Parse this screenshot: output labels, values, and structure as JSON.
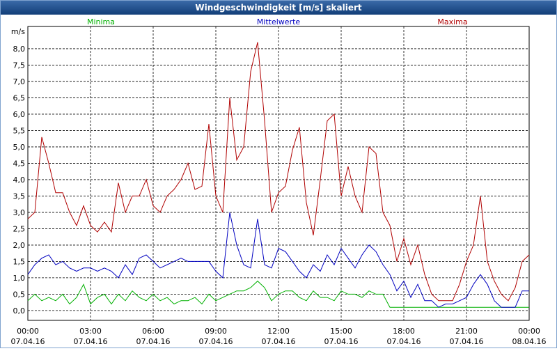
{
  "chart_data": {
    "type": "line",
    "title": "Windgeschwindigkeit [m/s] skaliert",
    "y_unit": "m/s",
    "x": [
      0,
      20,
      40,
      60,
      80,
      100,
      120,
      140,
      160,
      180,
      200,
      220,
      240,
      260,
      280,
      300,
      320,
      340,
      360,
      380,
      400,
      420,
      440,
      460,
      480,
      500,
      520,
      540,
      560,
      580,
      600,
      620,
      640,
      660,
      680,
      700,
      720,
      740,
      760,
      780,
      800,
      820,
      840,
      860,
      880,
      900,
      920,
      940,
      960,
      980,
      1000,
      1020,
      1040,
      1060,
      1080,
      1100,
      1120,
      1140,
      1160,
      1180,
      1200,
      1220,
      1240,
      1260,
      1280,
      1300,
      1320,
      1340,
      1360,
      1380,
      1400,
      1420,
      1440
    ],
    "xlim": [
      0,
      1440
    ],
    "xticks": [
      {
        "value": 0,
        "label": "00:00",
        "date": "07.04.16"
      },
      {
        "value": 180,
        "label": "03:00",
        "date": "07.04.16"
      },
      {
        "value": 360,
        "label": "06:00",
        "date": "07.04.16"
      },
      {
        "value": 540,
        "label": "09:00",
        "date": "07.04.16"
      },
      {
        "value": 720,
        "label": "12:00",
        "date": "07.04.16"
      },
      {
        "value": 900,
        "label": "15:00",
        "date": "07.04.16"
      },
      {
        "value": 1080,
        "label": "18:00",
        "date": "07.04.16"
      },
      {
        "value": 1260,
        "label": "21:00",
        "date": "07.04.16"
      },
      {
        "value": 1440,
        "label": "00:00",
        "date": "08.04.16"
      }
    ],
    "ylim": [
      -0.3,
      8.68
    ],
    "yticks": [
      {
        "value": 0,
        "label": "0,0"
      },
      {
        "value": 0.5,
        "label": "0,5"
      },
      {
        "value": 1,
        "label": "1,0"
      },
      {
        "value": 1.5,
        "label": "1,5"
      },
      {
        "value": 2,
        "label": "2,0"
      },
      {
        "value": 2.5,
        "label": "2,5"
      },
      {
        "value": 3,
        "label": "3,0"
      },
      {
        "value": 3.5,
        "label": "3,5"
      },
      {
        "value": 4,
        "label": "4,0"
      },
      {
        "value": 4.5,
        "label": "4,5"
      },
      {
        "value": 5,
        "label": "5,0"
      },
      {
        "value": 5.5,
        "label": "5,5"
      },
      {
        "value": 6,
        "label": "6,0"
      },
      {
        "value": 6.5,
        "label": "6,5"
      },
      {
        "value": 7,
        "label": "7,0"
      },
      {
        "value": 7.5,
        "label": "7,5"
      },
      {
        "value": 8,
        "label": "8,0"
      }
    ],
    "grid": true,
    "series": [
      {
        "name": "Minima",
        "color": "#00b000",
        "values": [
          0.3,
          0.5,
          0.3,
          0.4,
          0.3,
          0.5,
          0.2,
          0.4,
          0.8,
          0.2,
          0.4,
          0.5,
          0.2,
          0.5,
          0.3,
          0.6,
          0.4,
          0.3,
          0.5,
          0.3,
          0.4,
          0.2,
          0.3,
          0.3,
          0.4,
          0.2,
          0.5,
          0.3,
          0.4,
          0.5,
          0.6,
          0.6,
          0.7,
          0.9,
          0.7,
          0.3,
          0.5,
          0.6,
          0.6,
          0.4,
          0.3,
          0.6,
          0.4,
          0.4,
          0.3,
          0.6,
          0.5,
          0.5,
          0.4,
          0.6,
          0.5,
          0.5,
          0.1,
          0.1,
          0.1,
          0.1,
          0.1,
          0.1,
          0.1,
          0.1,
          0.1,
          0.1,
          0.1,
          0.1,
          0.1,
          0.1,
          0.1,
          0.1,
          0.1,
          0.1,
          0.1,
          0.1,
          0.1
        ]
      },
      {
        "name": "Mittelwerte",
        "color": "#0000c0",
        "values": [
          1.1,
          1.4,
          1.6,
          1.7,
          1.4,
          1.5,
          1.3,
          1.2,
          1.3,
          1.3,
          1.2,
          1.3,
          1.2,
          1.0,
          1.4,
          1.1,
          1.6,
          1.7,
          1.5,
          1.3,
          1.4,
          1.5,
          1.6,
          1.5,
          1.5,
          1.5,
          1.5,
          1.2,
          1.0,
          3.0,
          2.0,
          1.4,
          1.3,
          2.8,
          1.4,
          1.3,
          1.9,
          1.8,
          1.5,
          1.2,
          1.0,
          1.4,
          1.2,
          1.7,
          1.4,
          1.9,
          1.6,
          1.3,
          1.7,
          2.0,
          1.8,
          1.4,
          1.1,
          0.6,
          0.9,
          0.4,
          0.8,
          0.3,
          0.3,
          0.1,
          0.2,
          0.2,
          0.3,
          0.4,
          0.8,
          1.1,
          0.8,
          0.3,
          0.1,
          0.1,
          0.1,
          0.6,
          0.6
        ]
      },
      {
        "name": "Maxima",
        "color": "#b00000",
        "values": [
          2.8,
          3.0,
          5.3,
          4.5,
          3.6,
          3.6,
          3.0,
          2.6,
          3.2,
          2.6,
          2.4,
          2.7,
          2.4,
          3.9,
          3.0,
          3.5,
          3.5,
          4.0,
          3.2,
          3.0,
          3.5,
          3.7,
          4.0,
          4.5,
          3.7,
          3.8,
          5.7,
          3.5,
          3.0,
          6.5,
          4.6,
          5.0,
          7.3,
          8.2,
          5.8,
          3.0,
          3.6,
          3.8,
          4.9,
          5.6,
          3.3,
          2.3,
          4.0,
          5.8,
          6.0,
          3.5,
          4.4,
          3.5,
          3.0,
          5.0,
          4.8,
          3.0,
          2.6,
          1.5,
          2.2,
          1.4,
          2.0,
          1.1,
          0.5,
          0.3,
          0.3,
          0.3,
          0.8,
          1.5,
          2.0,
          3.5,
          1.5,
          0.9,
          0.5,
          0.3,
          0.7,
          1.5,
          1.7
        ]
      }
    ]
  }
}
